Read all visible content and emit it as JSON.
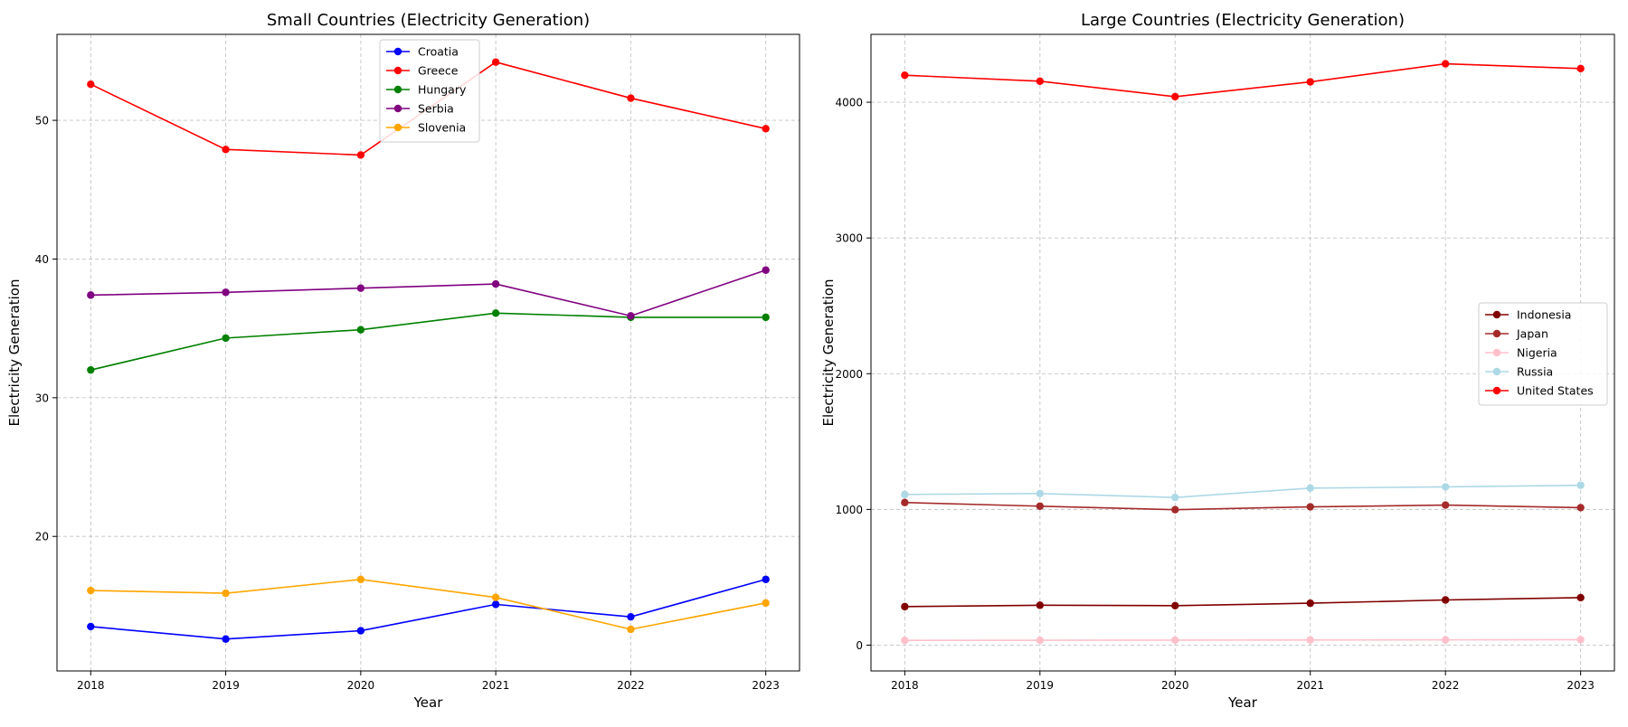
{
  "chart_data": [
    {
      "type": "line",
      "title": "Small Countries (Electricity Generation)",
      "xlabel": "Year",
      "ylabel": "Electricity Generation",
      "x": [
        2018,
        2019,
        2020,
        2021,
        2022,
        2023
      ],
      "xticks": [
        "2018",
        "2019",
        "2020",
        "2021",
        "2022",
        "2023"
      ],
      "ylim": [
        10.3,
        56.2
      ],
      "yticks": [
        "20",
        "30",
        "40",
        "50"
      ],
      "grid": true,
      "legend_position": "top-center",
      "series": [
        {
          "name": "Croatia",
          "color": "#0000ff",
          "values": [
            13.5,
            12.6,
            13.2,
            15.1,
            14.2,
            16.9
          ]
        },
        {
          "name": "Greece",
          "color": "#ff0000",
          "values": [
            52.6,
            47.9,
            47.5,
            54.2,
            51.6,
            49.4
          ]
        },
        {
          "name": "Hungary",
          "color": "#008000",
          "values": [
            32.0,
            34.3,
            34.9,
            36.1,
            35.8,
            35.8
          ]
        },
        {
          "name": "Serbia",
          "color": "#800080",
          "values": [
            37.4,
            37.6,
            37.9,
            38.2,
            35.9,
            39.2
          ]
        },
        {
          "name": "Slovenia",
          "color": "#ffa500",
          "values": [
            16.1,
            15.9,
            16.9,
            15.6,
            13.3,
            15.2
          ]
        }
      ]
    },
    {
      "type": "line",
      "title": "Large Countries (Electricity Generation)",
      "xlabel": "Year",
      "ylabel": "Electricity Generation",
      "x": [
        2018,
        2019,
        2020,
        2021,
        2022,
        2023
      ],
      "xticks": [
        "2018",
        "2019",
        "2020",
        "2021",
        "2022",
        "2023"
      ],
      "ylim": [
        -190,
        4500
      ],
      "yticks": [
        "0",
        "1000",
        "2000",
        "3000",
        "4000"
      ],
      "grid": true,
      "legend_position": "center-right",
      "series": [
        {
          "name": "Indonesia",
          "color": "#800000",
          "values": [
            284,
            294,
            291,
            309,
            333,
            350
          ]
        },
        {
          "name": "Japan",
          "color": "#a52a2a",
          "values": [
            1051,
            1024,
            998,
            1019,
            1032,
            1013
          ]
        },
        {
          "name": "Nigeria",
          "color": "#ffc0cb",
          "values": [
            35,
            36,
            37,
            38,
            39,
            40
          ]
        },
        {
          "name": "Russia",
          "color": "#add8e6",
          "values": [
            1110,
            1117,
            1088,
            1157,
            1166,
            1178
          ]
        },
        {
          "name": "United States",
          "color": "#ff0000",
          "values": [
            4199,
            4155,
            4041,
            4150,
            4283,
            4248
          ]
        }
      ]
    }
  ]
}
